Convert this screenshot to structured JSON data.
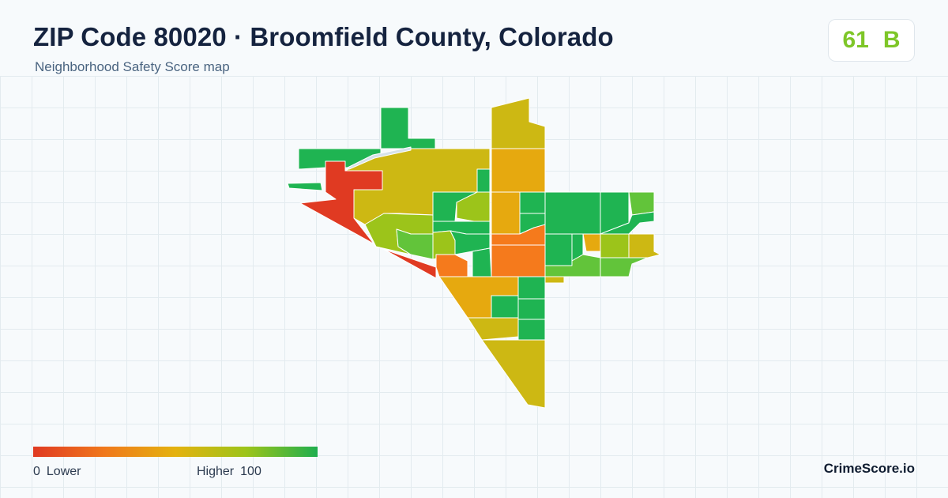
{
  "header": {
    "title": "ZIP Code 80020 · Broomfield County, Colorado",
    "subtitle": "Neighborhood Safety Score map"
  },
  "score": {
    "value": "61",
    "grade": "B",
    "color": "#7ec628"
  },
  "legend": {
    "min_value": "0",
    "min_label": "Lower",
    "max_label": "Higher",
    "max_value": "100",
    "colors": [
      "#e03a22",
      "#f0781c",
      "#e4b20f",
      "#9cc41a",
      "#1fae4e"
    ]
  },
  "brand": "CrimeScore.io",
  "map": {
    "colors": {
      "red": "#e03a22",
      "orange": "#f57a1c",
      "amber": "#e6a90f",
      "olive": "#cdb813",
      "yellowgreen": "#9cc41a",
      "lightgreen": "#62c43a",
      "green": "#1fb452",
      "water": "#d6e2ea"
    }
  }
}
